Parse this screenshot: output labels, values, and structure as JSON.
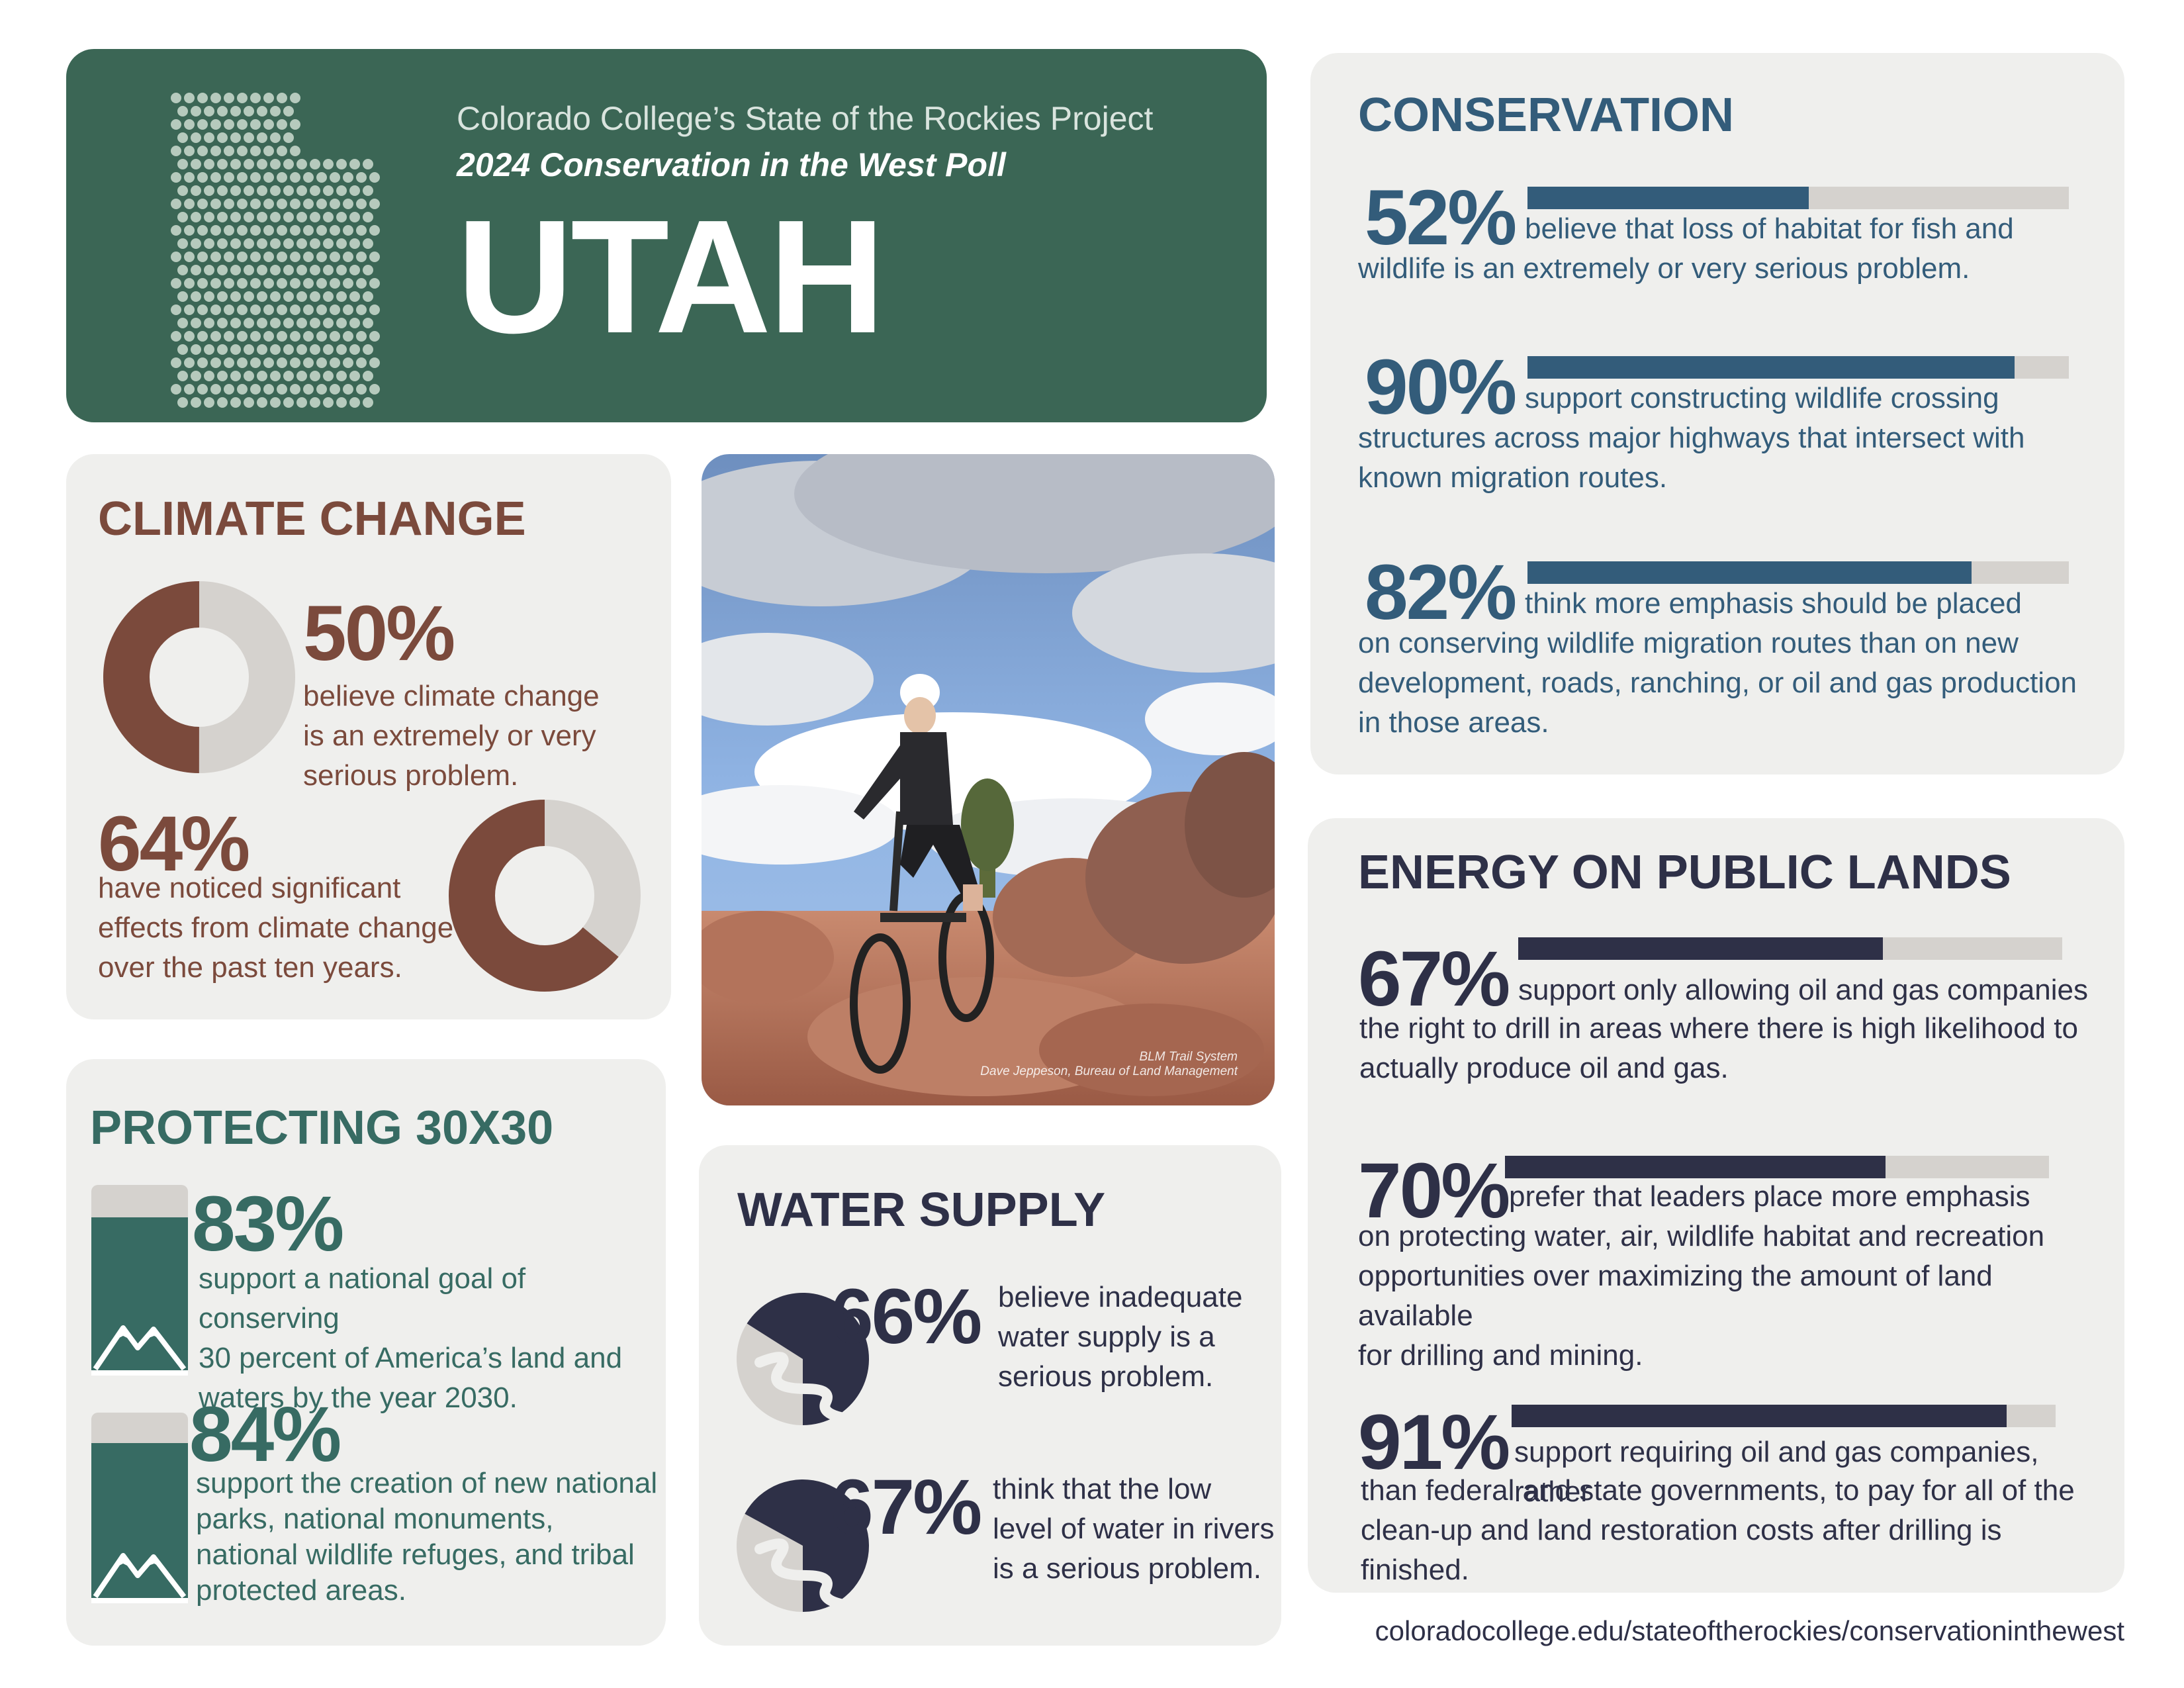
{
  "header": {
    "project": "Colorado College’s State of the Rockies Project",
    "poll": "2024 Conservation in the West Poll",
    "state": "UTAH"
  },
  "climate": {
    "title": "CLIMATE CHANGE",
    "stat1": {
      "value": "50%",
      "fraction": 0.5,
      "text": [
        "believe climate change",
        "is an extremely or very",
        "serious problem."
      ]
    },
    "stat2": {
      "value": "64%",
      "fraction": 0.64,
      "text": [
        "have noticed significant",
        "effects from climate change",
        "over the past ten years."
      ]
    },
    "color": "#7b4a3c",
    "track": "#d5d2ce"
  },
  "photo": {
    "icon": "mountain-biker-photo",
    "credit": [
      "BLM Trail System",
      "Dave Jeppeson, Bureau of Land Management"
    ]
  },
  "protecting": {
    "title": "PROTECTING 30X30",
    "stat1": {
      "value": "83%",
      "fraction": 0.83,
      "text": [
        "support a national goal of conserving",
        "30 percent of America’s land and",
        "waters by the year 2030."
      ]
    },
    "stat2": {
      "value": "84%",
      "fraction": 0.84,
      "text": [
        "support the creation of new national",
        "parks, national monuments,",
        "national wildlife refuges, and tribal",
        "protected areas."
      ]
    },
    "color": "#376b63",
    "icon": "mountain-icon"
  },
  "water": {
    "title": "WATER SUPPLY",
    "stat1": {
      "value": "66%",
      "fraction": 0.66,
      "text": [
        "believe inadequate",
        "water supply is a",
        "serious problem."
      ]
    },
    "stat2": {
      "value": "67%",
      "fraction": 0.67,
      "text": [
        "think that the low",
        "level of water in rivers",
        "is a serious problem."
      ]
    },
    "color": "#2e3047",
    "icon": "river-icon"
  },
  "conservation": {
    "title": "CONSERVATION",
    "color": "#335c7a",
    "stats": [
      {
        "value": "52%",
        "fraction": 0.52,
        "first": "believe that loss of habitat for fish and",
        "rest": [
          "wildlife is an extremely or very serious problem."
        ]
      },
      {
        "value": "90%",
        "fraction": 0.9,
        "first": "support constructing wildlife crossing",
        "rest": [
          "structures across major highways that intersect with",
          "known migration routes."
        ]
      },
      {
        "value": "82%",
        "fraction": 0.82,
        "first": "think more emphasis should be placed",
        "rest": [
          "on conserving wildlife migration routes than on new",
          "development, roads, ranching, or oil and gas production",
          "in those areas."
        ]
      }
    ]
  },
  "energy": {
    "title": "ENERGY ON PUBLIC LANDS",
    "color": "#2e3047",
    "stats": [
      {
        "value": "67%",
        "fraction": 0.67,
        "first": "support only allowing oil and gas companies",
        "rest": [
          "the right to drill in areas where there is high likelihood to",
          "actually produce oil and gas."
        ]
      },
      {
        "value": "70%",
        "fraction": 0.7,
        "first": "prefer that leaders place more emphasis",
        "rest": [
          "on protecting water, air, wildlife habitat and recreation",
          "opportunities over maximizing the amount of land available",
          "for drilling and mining."
        ]
      },
      {
        "value": "91%",
        "fraction": 0.91,
        "first": "support requiring oil and gas companies, rather",
        "rest": [
          "than federal and state governments, to pay for all of the",
          "clean-up and land restoration costs after drilling is finished."
        ]
      }
    ]
  },
  "footer": {
    "url": "coloradocollege.edu/stateoftherockies/conservationinthewest"
  }
}
